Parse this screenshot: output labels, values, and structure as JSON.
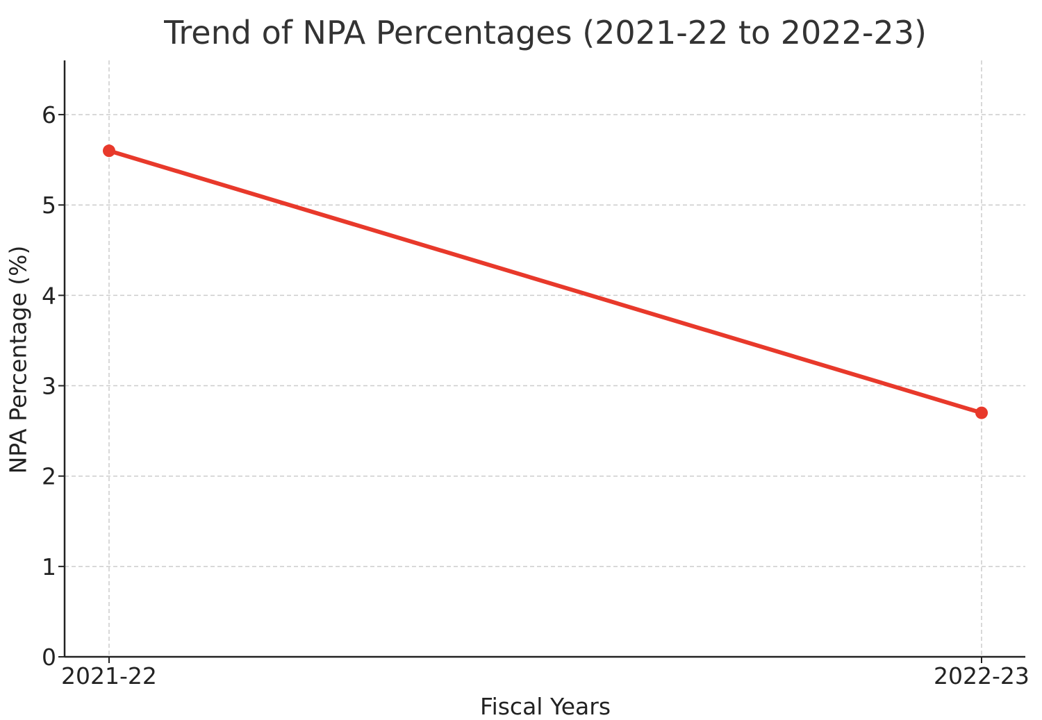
{
  "chart_data": {
    "type": "line",
    "title": "Trend of NPA Percentages (2021-22 to 2022-23)",
    "xlabel": "Fiscal Years",
    "ylabel": "NPA Percentage (%)",
    "categories": [
      "2021-22",
      "2022-23"
    ],
    "series": [
      {
        "values": [
          5.6,
          2.7
        ]
      }
    ],
    "ylim": [
      0,
      6.6
    ],
    "yticks": [
      "0",
      "1",
      "2",
      "3",
      "4",
      "5",
      "6"
    ],
    "grid": true,
    "grid_style": "dashed",
    "line_color": "#e8392b",
    "axis_color": "#222222",
    "grid_color": "#cccccc"
  }
}
